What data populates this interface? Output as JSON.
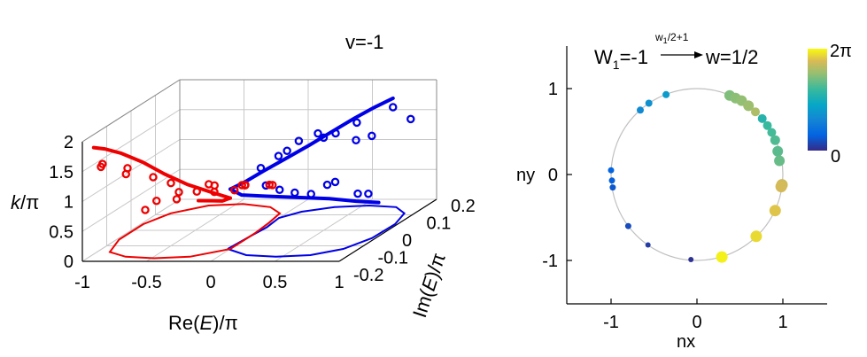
{
  "chart_data": [
    {
      "type": "line",
      "subtype": "3d-scatter-line",
      "title": "v=-1",
      "axes": {
        "x": {
          "label_pre": "Re(",
          "label_var": "E",
          "label_post": ")/π",
          "lim": [
            -1,
            1
          ],
          "ticks": [
            "-1",
            "0.5",
            "0",
            "-0.5",
            "1"
          ],
          "tick_values": [
            -1,
            0.5,
            0,
            -0.5,
            1
          ]
        },
        "y": {
          "label_pre": "Im(",
          "label_var": "E",
          "label_post": ")/π",
          "lim": [
            -0.2,
            0.2
          ],
          "ticks": [
            "-0.2",
            "-0.1",
            "0",
            "0.1",
            "0.2"
          ],
          "tick_values": [
            -0.2,
            -0.1,
            0,
            0.1,
            0.2
          ]
        },
        "z": {
          "label_var": "k",
          "label_post": "/π",
          "lim": [
            0,
            2
          ],
          "ticks": [
            "0",
            "0.5",
            "1",
            "1.5",
            "2"
          ],
          "tick_values": [
            0,
            0.5,
            1,
            1.5,
            2
          ]
        }
      },
      "grid": true,
      "series": [
        {
          "color": "#0000e6",
          "curve_3d": [
            [
              0.85,
              0.1,
              1.95
            ],
            [
              0.78,
              0.06,
              1.9
            ],
            [
              0.7,
              0.02,
              1.82
            ],
            [
              0.6,
              -0.02,
              1.7
            ],
            [
              0.48,
              -0.05,
              1.55
            ],
            [
              0.35,
              -0.08,
              1.4
            ],
            [
              0.22,
              -0.1,
              1.25
            ],
            [
              0.1,
              -0.11,
              1.1
            ],
            [
              0.0,
              -0.12,
              1.0
            ]
          ],
          "curve_3d_2": [
            [
              0.0,
              -0.12,
              1.0
            ],
            [
              0.05,
              -0.1,
              0.85
            ],
            [
              0.15,
              -0.05,
              0.7
            ],
            [
              0.3,
              0.0,
              0.55
            ],
            [
              0.45,
              0.05,
              0.4
            ],
            [
              0.6,
              0.08,
              0.28
            ],
            [
              0.72,
              0.11,
              0.18
            ]
          ],
          "projection_k0": [
            [
              -0.02,
              -0.12
            ],
            [
              0.2,
              -0.16
            ],
            [
              0.45,
              -0.17
            ],
            [
              0.7,
              -0.16
            ],
            [
              0.88,
              -0.12
            ],
            [
              0.97,
              -0.05
            ],
            [
              0.98,
              0.04
            ],
            [
              0.92,
              0.11
            ],
            [
              0.78,
              0.15
            ],
            [
              0.55,
              0.16
            ],
            [
              0.3,
              0.15
            ],
            [
              0.1,
              0.12
            ],
            [
              0.0,
              0.08
            ],
            [
              0.02,
              0.02
            ],
            [
              0.0,
              -0.04
            ],
            [
              -0.02,
              -0.12
            ]
          ],
          "markers": [
            [
              0.85,
              0.1,
              1.8
            ],
            [
              0.72,
              0.02,
              1.75
            ],
            [
              0.65,
              -0.03,
              1.7
            ],
            [
              0.55,
              -0.05,
              1.75
            ],
            [
              0.5,
              0.0,
              1.55
            ],
            [
              0.42,
              -0.06,
              1.65
            ],
            [
              0.3,
              -0.08,
              1.45
            ],
            [
              0.2,
              -0.1,
              1.3
            ],
            [
              0.12,
              0.05,
              1.2
            ],
            [
              0.95,
              0.12,
              1.55
            ],
            [
              0.78,
              0.05,
              1.45
            ],
            [
              0.6,
              0.08,
              1.3
            ],
            [
              0.4,
              0.1,
              0.55
            ],
            [
              0.3,
              0.12,
              0.45
            ],
            [
              0.25,
              0.08,
              0.4
            ],
            [
              0.18,
              0.05,
              0.5
            ],
            [
              0.1,
              0.03,
              0.6
            ],
            [
              0.05,
              0.0,
              0.75
            ],
            [
              0.62,
              0.12,
              0.3
            ],
            [
              0.5,
              0.14,
              0.25
            ]
          ]
        },
        {
          "color": "#ee0000",
          "curve_3d": [
            [
              -0.95,
              -0.18,
              1.85
            ],
            [
              -0.92,
              -0.15,
              1.75
            ],
            [
              -0.85,
              -0.12,
              1.6
            ],
            [
              -0.72,
              -0.1,
              1.4
            ],
            [
              -0.55,
              -0.1,
              1.2
            ],
            [
              -0.35,
              -0.11,
              1.05
            ],
            [
              -0.15,
              -0.12,
              0.95
            ],
            [
              0.0,
              -0.12,
              0.85
            ]
          ],
          "curve_3d_2": [
            [
              0.0,
              -0.12,
              0.85
            ],
            [
              -0.1,
              -0.1,
              0.75
            ],
            [
              -0.25,
              -0.06,
              0.65
            ],
            [
              -0.4,
              -0.04,
              0.6
            ]
          ],
          "projection_k0": [
            [
              0.0,
              -0.12
            ],
            [
              -0.22,
              -0.17
            ],
            [
              -0.48,
              -0.18
            ],
            [
              -0.72,
              -0.17
            ],
            [
              -0.9,
              -0.14
            ],
            [
              -0.98,
              -0.06
            ],
            [
              -0.98,
              0.04
            ],
            [
              -0.9,
              0.11
            ],
            [
              -0.7,
              0.16
            ],
            [
              -0.45,
              0.17
            ],
            [
              -0.2,
              0.15
            ],
            [
              -0.05,
              0.11
            ],
            [
              -0.02,
              0.05
            ],
            [
              0.0,
              -0.02
            ],
            [
              0.0,
              -0.12
            ]
          ],
          "markers": [
            [
              -0.9,
              -0.17,
              1.55
            ],
            [
              -0.95,
              -0.15,
              1.45
            ],
            [
              -0.8,
              -0.12,
              1.35
            ],
            [
              -0.85,
              -0.1,
              1.2
            ],
            [
              -0.6,
              -0.12,
              1.2
            ],
            [
              -0.5,
              -0.1,
              1.05
            ],
            [
              -0.4,
              -0.12,
              0.95
            ],
            [
              -0.3,
              -0.05,
              0.9
            ],
            [
              -0.2,
              -0.08,
              0.85
            ],
            [
              -0.1,
              -0.05,
              0.8
            ],
            [
              -0.15,
              0.02,
              0.7
            ],
            [
              -0.35,
              0.0,
              0.75
            ],
            [
              -0.45,
              -0.02,
              0.7
            ],
            [
              -0.55,
              -0.05,
              0.65
            ],
            [
              -0.65,
              -0.08,
              0.7
            ],
            [
              -0.7,
              -0.1,
              0.6
            ],
            [
              -0.25,
              0.06,
              0.6
            ],
            [
              -0.05,
              0.08,
              0.55
            ],
            [
              -0.3,
              0.1,
              0.5
            ],
            [
              -0.15,
              0.12,
              0.45
            ]
          ]
        }
      ]
    },
    {
      "type": "scatter",
      "title_left": "W",
      "title_left_sub": "1",
      "title_left_value": "=-1",
      "arrow_label": "w",
      "arrow_label_sub": "1",
      "arrow_label_rest": "/2+1",
      "title_right": "w=1/2",
      "xlabel": "nx",
      "ylabel": "ny",
      "xlim": [
        -1.5,
        1.5
      ],
      "ylim": [
        -1.5,
        1.5
      ],
      "xticks": [
        -1,
        0,
        1
      ],
      "yticks": [
        -1,
        0,
        1
      ],
      "xtick_labels": [
        "-1",
        "0",
        "1"
      ],
      "ytick_labels": [
        "-1",
        "0",
        "1"
      ],
      "unit_circle": true,
      "colorbar": {
        "min_label": "0",
        "max_label": "2π",
        "colormap": "parula"
      },
      "points": [
        {
          "x": -0.07,
          "y": -0.99,
          "c": 0.02,
          "r": 3
        },
        {
          "x": -0.57,
          "y": -0.82,
          "c": 0.05,
          "r": 3
        },
        {
          "x": -0.8,
          "y": -0.6,
          "c": 0.09,
          "r": 3.5
        },
        {
          "x": -0.98,
          "y": -0.15,
          "c": 0.12,
          "r": 3.5
        },
        {
          "x": -0.99,
          "y": -0.07,
          "c": 0.14,
          "r": 3.5
        },
        {
          "x": -1.0,
          "y": 0.05,
          "c": 0.16,
          "r": 3.5
        },
        {
          "x": -0.66,
          "y": 0.75,
          "c": 0.32,
          "r": 4
        },
        {
          "x": -0.56,
          "y": 0.83,
          "c": 0.35,
          "r": 4
        },
        {
          "x": -0.36,
          "y": 0.93,
          "c": 0.4,
          "r": 4
        },
        {
          "x": 0.38,
          "y": 0.92,
          "c": 0.72,
          "r": 6
        },
        {
          "x": 0.45,
          "y": 0.89,
          "c": 0.74,
          "r": 6
        },
        {
          "x": 0.52,
          "y": 0.86,
          "c": 0.75,
          "r": 6
        },
        {
          "x": 0.6,
          "y": 0.8,
          "c": 0.77,
          "r": 6
        },
        {
          "x": 0.68,
          "y": 0.73,
          "c": 0.8,
          "r": 5
        },
        {
          "x": 0.76,
          "y": 0.65,
          "c": 0.55,
          "r": 5
        },
        {
          "x": 0.82,
          "y": 0.57,
          "c": 0.6,
          "r": 5
        },
        {
          "x": 0.87,
          "y": 0.49,
          "c": 0.62,
          "r": 5
        },
        {
          "x": 0.91,
          "y": 0.4,
          "c": 0.64,
          "r": 5.5
        },
        {
          "x": 0.94,
          "y": 0.27,
          "c": 0.66,
          "r": 6
        },
        {
          "x": 0.96,
          "y": 0.16,
          "c": 0.68,
          "r": 6
        },
        {
          "x": 0.99,
          "y": -0.12,
          "c": 0.86,
          "r": 6.5
        },
        {
          "x": 0.98,
          "y": -0.14,
          "c": 0.87,
          "r": 6.5
        },
        {
          "x": 0.91,
          "y": -0.42,
          "c": 0.9,
          "r": 6.5
        },
        {
          "x": 0.69,
          "y": -0.72,
          "c": 0.94,
          "r": 6.5
        },
        {
          "x": 0.29,
          "y": -0.96,
          "c": 0.98,
          "r": 6.5
        }
      ]
    }
  ]
}
